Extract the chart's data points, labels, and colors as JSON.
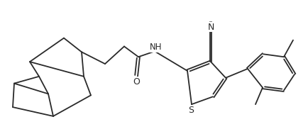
{
  "bg_color": "#ffffff",
  "line_color": "#2a2a2a",
  "line_width": 1.3,
  "font_size": 9,
  "figsize": [
    4.34,
    1.89
  ],
  "dpi": 100,
  "xlim": [
    0,
    10.5
  ],
  "ylim": [
    0,
    4.5
  ]
}
